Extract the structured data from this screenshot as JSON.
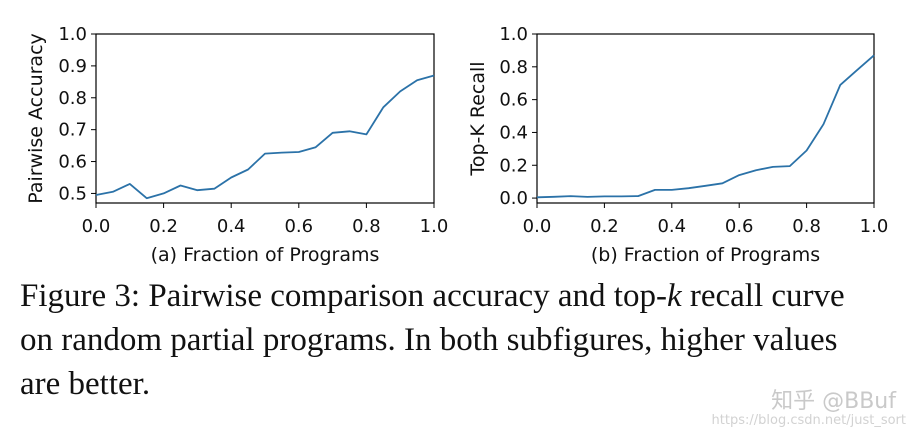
{
  "chart_data": [
    {
      "type": "line",
      "ylabel": "Pairwise Accuracy",
      "xlabel": "(a) Fraction of Programs",
      "xlim": [
        0.0,
        1.0
      ],
      "ylim": [
        0.47,
        1.0
      ],
      "xticks": [
        "0.0",
        "0.2",
        "0.4",
        "0.6",
        "0.8",
        "1.0"
      ],
      "yticks": [
        "0.5",
        "0.6",
        "0.7",
        "0.8",
        "0.9",
        "1.0"
      ],
      "series": [
        {
          "color": "#2b72a8",
          "x": [
            0.0,
            0.05,
            0.1,
            0.15,
            0.2,
            0.25,
            0.3,
            0.35,
            0.4,
            0.45,
            0.5,
            0.55,
            0.6,
            0.65,
            0.7,
            0.75,
            0.8,
            0.85,
            0.9,
            0.95,
            1.0
          ],
          "y": [
            0.495,
            0.505,
            0.53,
            0.485,
            0.5,
            0.525,
            0.51,
            0.515,
            0.55,
            0.575,
            0.625,
            0.628,
            0.63,
            0.645,
            0.69,
            0.695,
            0.685,
            0.77,
            0.82,
            0.855,
            0.87
          ]
        }
      ]
    },
    {
      "type": "line",
      "ylabel": "Top-K Recall",
      "xlabel": "(b) Fraction of Programs",
      "xlim": [
        0.0,
        1.0
      ],
      "ylim": [
        -0.03,
        1.0
      ],
      "xticks": [
        "0.0",
        "0.2",
        "0.4",
        "0.6",
        "0.8",
        "1.0"
      ],
      "yticks": [
        "0.0",
        "0.2",
        "0.4",
        "0.6",
        "0.8",
        "1.0"
      ],
      "series": [
        {
          "color": "#2b72a8",
          "x": [
            0.0,
            0.05,
            0.1,
            0.15,
            0.2,
            0.25,
            0.3,
            0.35,
            0.4,
            0.45,
            0.5,
            0.55,
            0.6,
            0.65,
            0.7,
            0.75,
            0.8,
            0.85,
            0.9,
            0.95,
            1.0
          ],
          "y": [
            0.005,
            0.008,
            0.012,
            0.007,
            0.01,
            0.01,
            0.012,
            0.05,
            0.05,
            0.06,
            0.075,
            0.09,
            0.14,
            0.17,
            0.19,
            0.195,
            0.29,
            0.45,
            0.69,
            0.78,
            0.87
          ]
        }
      ]
    }
  ],
  "caption": {
    "line1_prefix": "Figure 3: Pairwise comparison accuracy and top-",
    "line1_italic": "k",
    "line1_suffix": " recall curve",
    "line2": "on random partial programs. In both subfigures, higher values",
    "line3": "are better."
  },
  "watermark": {
    "text": "知乎 @BBuf",
    "url": "https://blog.csdn.net/just_sort"
  }
}
